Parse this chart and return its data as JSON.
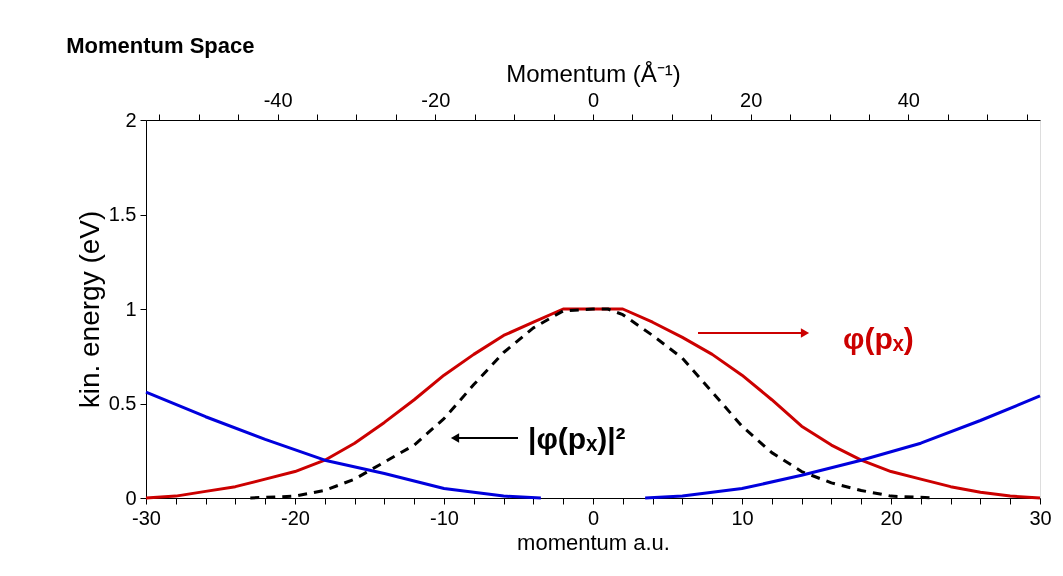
{
  "chart_data": {
    "type": "line",
    "title": "Momentum Space",
    "xlabel": "momentum a.u.",
    "ylabel": "kin. energy (eV)",
    "x2label": "Momentum (Å⁻¹)",
    "xlim": [
      -30,
      30
    ],
    "ylim": [
      0,
      2
    ],
    "xticks": [
      -30,
      {
        "value": -28,
        "label": null
      },
      {
        "value": -26,
        "label": null
      },
      {
        "value": -24,
        "label": null
      },
      {
        "value": -22,
        "label": null
      },
      -20,
      {
        "value": -18,
        "label": null
      },
      {
        "value": -16,
        "label": null
      },
      {
        "value": -14,
        "label": null
      },
      {
        "value": -12,
        "label": null
      },
      -10,
      {
        "value": -8,
        "label": null
      },
      {
        "value": -6,
        "label": null
      },
      {
        "value": -4,
        "label": null
      },
      {
        "value": -2,
        "label": null
      },
      0,
      {
        "value": 2,
        "label": null
      },
      {
        "value": 4,
        "label": null
      },
      {
        "value": 6,
        "label": null
      },
      {
        "value": 8,
        "label": null
      },
      10,
      {
        "value": 12,
        "label": null
      },
      {
        "value": 14,
        "label": null
      },
      {
        "value": 16,
        "label": null
      },
      {
        "value": 18,
        "label": null
      },
      20,
      {
        "value": 22,
        "label": null
      },
      {
        "value": 24,
        "label": null
      },
      {
        "value": 26,
        "label": null
      },
      {
        "value": 28,
        "label": null
      },
      30
    ],
    "x2lim": [
      -56.7,
      56.7
    ],
    "x2ticks": [
      {
        "value": -55,
        "label": null
      },
      {
        "value": -50,
        "label": null
      },
      {
        "value": -45,
        "label": null
      },
      -40,
      {
        "value": -35,
        "label": null
      },
      {
        "value": -30,
        "label": null
      },
      {
        "value": -25,
        "label": null
      },
      -20,
      {
        "value": -15,
        "label": null
      },
      {
        "value": -10,
        "label": null
      },
      {
        "value": -5,
        "label": null
      },
      0,
      {
        "value": 5,
        "label": null
      },
      {
        "value": 10,
        "label": null
      },
      {
        "value": 15,
        "label": null
      },
      20,
      {
        "value": 25,
        "label": null
      },
      {
        "value": 30,
        "label": null
      },
      {
        "value": 35,
        "label": null
      },
      40,
      {
        "value": 45,
        "label": null
      },
      {
        "value": 50,
        "label": null
      },
      {
        "value": 55,
        "label": null
      }
    ],
    "yticks": [
      0,
      0.5,
      1,
      1.5,
      2
    ],
    "grid": false,
    "legend": "right",
    "series": [
      {
        "name": "φ(pₓ)",
        "color": "#cc0000",
        "line_style": "solid",
        "x": [
          -30,
          -28,
          -26,
          -24,
          -22,
          -20,
          -18,
          -16,
          -14,
          -12,
          -10,
          -8,
          -6,
          -4,
          -2,
          0,
          2,
          4,
          6,
          8,
          10,
          12,
          14,
          16,
          18,
          20,
          22,
          24,
          26,
          28,
          30
        ],
        "values": [
          0.0,
          0.01,
          0.035,
          0.06,
          0.1,
          0.14,
          0.2,
          0.29,
          0.4,
          0.52,
          0.65,
          0.76,
          0.86,
          0.93,
          1.0,
          1.0,
          1.0,
          0.93,
          0.85,
          0.76,
          0.65,
          0.52,
          0.38,
          0.28,
          0.2,
          0.14,
          0.1,
          0.06,
          0.03,
          0.01,
          0.0
        ]
      },
      {
        "name": "|φ(pₓ)|²",
        "color": "#000000",
        "line_style": "dashed",
        "x": [
          -23,
          -20,
          -18,
          -16,
          -14,
          -12,
          -10,
          -8,
          -6,
          -4,
          -2,
          0,
          1,
          2,
          4,
          6,
          8,
          10,
          12,
          14,
          16,
          18,
          20,
          23
        ],
        "values": [
          0.0,
          0.01,
          0.04,
          0.1,
          0.19,
          0.28,
          0.42,
          0.6,
          0.77,
          0.9,
          0.99,
          1.0,
          1.0,
          0.97,
          0.86,
          0.74,
          0.56,
          0.38,
          0.24,
          0.14,
          0.08,
          0.04,
          0.01,
          0.0
        ]
      },
      {
        "color": "#0000dd",
        "line_style": "solid",
        "x": [
          -30,
          -26,
          -22,
          -18,
          -14,
          -10,
          -6,
          -3.5,
          0,
          3.5,
          6,
          10,
          14,
          18,
          22,
          26,
          30
        ],
        "values": [
          0.56,
          0.43,
          0.31,
          0.2,
          0.13,
          0.05,
          0.01,
          0.0,
          null,
          0.0,
          0.01,
          0.05,
          0.12,
          0.2,
          0.29,
          0.41,
          0.54
        ]
      }
    ]
  }
}
